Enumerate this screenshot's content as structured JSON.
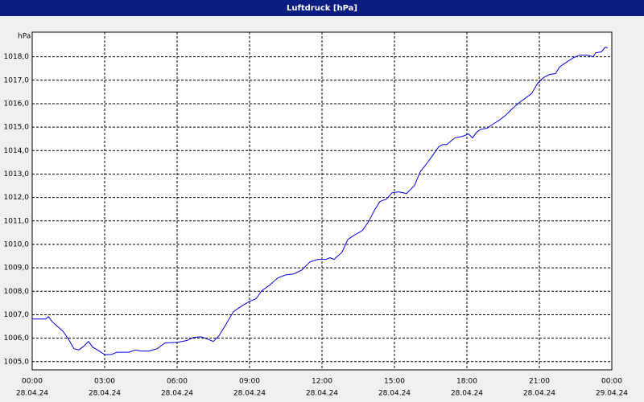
{
  "chart_data": {
    "type": "line",
    "title": "Luftdruck [hPa]",
    "y_unit": "hPa",
    "x": [
      0,
      0.57,
      0.67,
      0.83,
      1.07,
      1.27,
      1.5,
      1.73,
      1.93,
      2.13,
      2.33,
      2.5,
      2.73,
      3.0,
      3.27,
      3.5,
      4.0,
      4.27,
      4.5,
      4.83,
      5.17,
      5.5,
      6.0,
      6.4,
      6.67,
      7.0,
      7.27,
      7.5,
      7.73,
      8.0,
      8.33,
      8.67,
      9.0,
      9.27,
      9.5,
      9.83,
      10.17,
      10.5,
      10.83,
      11.17,
      11.5,
      11.83,
      12.17,
      12.33,
      12.5,
      12.83,
      13.07,
      13.33,
      13.67,
      13.93,
      14.17,
      14.4,
      14.67,
      14.9,
      15.17,
      15.5,
      15.83,
      16.07,
      16.33,
      16.6,
      16.83,
      17.0,
      17.17,
      17.5,
      17.83,
      18.07,
      18.23,
      18.4,
      18.57,
      18.83,
      19.07,
      19.33,
      19.6,
      19.83,
      20.17,
      20.4,
      20.67,
      20.93,
      21.17,
      21.43,
      21.67,
      21.83,
      22.17,
      22.43,
      22.67,
      23.0,
      23.23,
      23.33,
      23.57,
      23.73,
      23.83
    ],
    "series": [
      {
        "name": "Luftdruck",
        "color": "#0000e0",
        "values": [
          1006.82,
          1006.82,
          1006.92,
          1006.7,
          1006.48,
          1006.3,
          1005.96,
          1005.55,
          1005.5,
          1005.65,
          1005.86,
          1005.62,
          1005.48,
          1005.3,
          1005.3,
          1005.4,
          1005.4,
          1005.5,
          1005.45,
          1005.45,
          1005.55,
          1005.8,
          1005.82,
          1005.9,
          1006.03,
          1006.06,
          1005.96,
          1005.86,
          1006.1,
          1006.55,
          1007.13,
          1007.37,
          1007.57,
          1007.68,
          1008.02,
          1008.26,
          1008.57,
          1008.7,
          1008.74,
          1008.91,
          1009.25,
          1009.36,
          1009.36,
          1009.43,
          1009.36,
          1009.67,
          1010.21,
          1010.39,
          1010.59,
          1010.97,
          1011.45,
          1011.83,
          1011.93,
          1012.2,
          1012.24,
          1012.17,
          1012.51,
          1013.1,
          1013.44,
          1013.82,
          1014.16,
          1014.26,
          1014.26,
          1014.54,
          1014.61,
          1014.71,
          1014.54,
          1014.78,
          1014.91,
          1014.95,
          1015.12,
          1015.29,
          1015.5,
          1015.74,
          1016.05,
          1016.22,
          1016.42,
          1016.87,
          1017.11,
          1017.25,
          1017.28,
          1017.56,
          1017.8,
          1017.97,
          1018.07,
          1018.07,
          1018.0,
          1018.17,
          1018.21,
          1018.41,
          1018.38
        ]
      }
    ],
    "xlim": [
      0,
      24
    ],
    "xticks": [
      {
        "value": 0,
        "label": "00:00"
      },
      {
        "value": 3,
        "label": "03:00"
      },
      {
        "value": 6,
        "label": "06:00"
      },
      {
        "value": 9,
        "label": "09:00"
      },
      {
        "value": 12,
        "label": "12:00"
      },
      {
        "value": 15,
        "label": "15:00"
      },
      {
        "value": 18,
        "label": "18:00"
      },
      {
        "value": 21,
        "label": "21:00"
      },
      {
        "value": 24,
        "label": "00:00"
      }
    ],
    "xtick_dates": [
      "28.04.24",
      "28.04.24",
      "28.04.24",
      "28.04.24",
      "28.04.24",
      "28.04.24",
      "28.04.24",
      "28.04.24",
      "29.04.24"
    ],
    "ylim": [
      1004.65,
      1019.05
    ],
    "yticks": [
      {
        "value": 1005,
        "label": "1005,0"
      },
      {
        "value": 1006,
        "label": "1006,0"
      },
      {
        "value": 1007,
        "label": "1007,0"
      },
      {
        "value": 1008,
        "label": "1008,0"
      },
      {
        "value": 1009,
        "label": "1009,0"
      },
      {
        "value": 1010,
        "label": "1010,0"
      },
      {
        "value": 1011,
        "label": "1011,0"
      },
      {
        "value": 1012,
        "label": "1012,0"
      },
      {
        "value": 1013,
        "label": "1013,0"
      },
      {
        "value": 1014,
        "label": "1014,0"
      },
      {
        "value": 1015,
        "label": "1015,0"
      },
      {
        "value": 1016,
        "label": "1016,0"
      },
      {
        "value": 1017,
        "label": "1017,0"
      },
      {
        "value": 1018,
        "label": "1018,0"
      }
    ],
    "grid": true
  }
}
